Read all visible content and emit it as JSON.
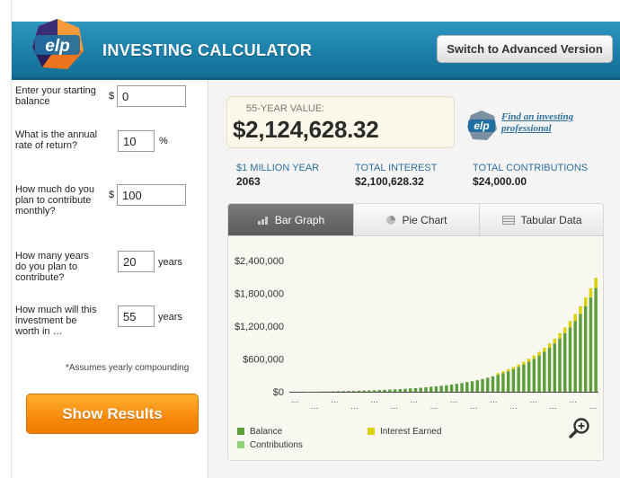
{
  "header": {
    "logo_text": "elp",
    "title": "INVESTING CALCULATOR",
    "advanced_button": "Switch to Advanced Version"
  },
  "form": {
    "balance_label": "Enter your starting balance",
    "balance_prefix": "$",
    "balance_value": "0",
    "rate_label": "What is the annual rate of return?",
    "rate_value": "10",
    "rate_suffix": "%",
    "monthly_label": "How much do you plan to contribute monthly?",
    "monthly_prefix": "$",
    "monthly_value": "100",
    "years_contrib_label": "How many years do you plan to contribute?",
    "years_contrib_value": "20",
    "years_contrib_suffix": "years",
    "years_worth_label": "How much will this investment be worth in …",
    "years_worth_value": "55",
    "years_worth_suffix": "years",
    "assumes": "*Assumes yearly compounding",
    "show_results": "Show Results"
  },
  "summary": {
    "value_label": "55-YEAR VALUE:",
    "value_amount": "$2,124,628.32",
    "find_link": "Find an investing professional",
    "million_year_label": "$1 MILLION YEAR",
    "million_year_value": "2063",
    "total_interest_label": "TOTAL INTEREST",
    "total_interest_value": "$2,100,628.32",
    "total_contrib_label": "TOTAL CONTRIBUTIONS",
    "total_contrib_value": "$24,000.00"
  },
  "tabs": [
    {
      "label": "Bar Graph",
      "active": true,
      "icon": "bar-graph-icon"
    },
    {
      "label": "Pie Chart",
      "active": false,
      "icon": "pie-chart-icon"
    },
    {
      "label": "Tabular Data",
      "active": false,
      "icon": "table-icon"
    }
  ],
  "colors": {
    "balance": "#5c9e3c",
    "interest": "#dcd000",
    "contributions": "#8fd27a",
    "header": "#1c7fa8",
    "orange": "#f78a0c"
  },
  "chart_data": {
    "type": "bar",
    "stacked": true,
    "ylim": [
      0,
      2400000
    ],
    "yticks": [
      "$0",
      "$600,000",
      "$1,200,000",
      "$1,800,000",
      "$2,400,000"
    ],
    "ytick_values": [
      0,
      600000,
      1200000,
      1800000,
      2400000
    ],
    "xtick_label": "…",
    "grid": false,
    "legend_position": "bottom",
    "series": [
      {
        "name": "Balance",
        "color": "#5c9e3c",
        "values": [
          0,
          0,
          0,
          1000,
          2000,
          3000,
          5000,
          6000,
          8000,
          10000,
          12000,
          14000,
          16000,
          19000,
          22000,
          25000,
          28000,
          32000,
          36000,
          40000,
          45000,
          50000,
          55000,
          61000,
          67000,
          74000,
          81000,
          90000,
          99000,
          109000,
          119000,
          131000,
          144000,
          159000,
          175000,
          192000,
          211000,
          233000,
          256000,
          281000,
          310000,
          341000,
          375000,
          412000,
          454000,
          499000,
          549000,
          604000,
          664000,
          731000,
          804000,
          884000,
          973000,
          1070000,
          1177000,
          1296000,
          1424000,
          1567000,
          1724000,
          1896000
        ]
      },
      {
        "name": "Interest Earned",
        "color": "#dcd000",
        "values": [
          0,
          0,
          0,
          0,
          0,
          0,
          0,
          0,
          0,
          0,
          0,
          0,
          0,
          0,
          0,
          0,
          0,
          0,
          0,
          0,
          0,
          0,
          0,
          0,
          0,
          0,
          0,
          0,
          0,
          0,
          0,
          0,
          0,
          0,
          0,
          0,
          0,
          0,
          0,
          0,
          31000,
          34000,
          37000,
          41000,
          45000,
          50000,
          55000,
          60000,
          66000,
          73000,
          80000,
          88000,
          97000,
          107000,
          117000,
          130000,
          142000,
          157000,
          172000,
          190000
        ]
      },
      {
        "name": "Contributions",
        "color": "#8fd27a",
        "values": [
          0,
          0,
          0,
          0,
          0,
          0,
          0,
          0,
          0,
          0,
          0,
          0,
          0,
          0,
          0,
          0,
          0,
          0,
          0,
          0,
          0,
          0,
          0,
          0,
          0,
          0,
          0,
          0,
          0,
          0,
          0,
          0,
          0,
          0,
          0,
          0,
          0,
          0,
          0,
          0,
          0,
          0,
          0,
          0,
          0,
          0,
          0,
          0,
          0,
          0,
          0,
          0,
          0,
          0,
          0,
          0,
          0,
          0,
          0,
          0
        ]
      }
    ]
  }
}
